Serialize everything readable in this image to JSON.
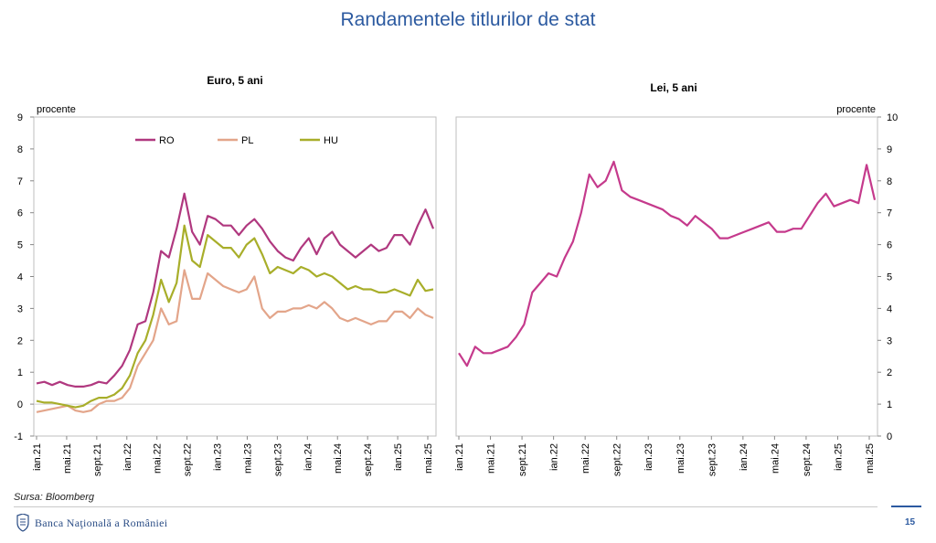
{
  "page": {
    "title": "Randamentele titlurilor de stat",
    "source": "Sursa: Bloomberg",
    "brand": "Banca Naţională a României",
    "page_number": "15"
  },
  "chart_data": [
    {
      "type": "line",
      "title": "Euro, 5 ani",
      "ylabel": "procente",
      "ylim": [
        -1,
        9
      ],
      "yticks": [
        "-1",
        "0",
        "1",
        "2",
        "3",
        "4",
        "5",
        "6",
        "7",
        "8",
        "9"
      ],
      "x_ticks": [
        "ian.21",
        "mai.21",
        "sept.21",
        "ian.22",
        "mai.22",
        "sept.22",
        "ian.23",
        "mai.23",
        "sept.23",
        "ian.24",
        "mai.24",
        "sept.24",
        "ian.25",
        "mai.25"
      ],
      "grid": false,
      "legend": "top-left",
      "series": [
        {
          "name": "RO",
          "color": "#b0387f",
          "x": [
            0,
            1,
            2,
            3,
            4,
            5,
            6,
            7,
            8,
            9,
            10,
            11,
            12,
            13,
            14,
            15,
            16,
            17,
            18,
            19,
            20,
            21,
            22,
            23,
            24,
            25,
            26,
            27,
            28,
            29,
            30,
            31,
            32,
            33,
            34,
            35,
            36,
            37,
            38,
            39,
            40,
            41,
            42,
            43,
            44,
            45,
            46,
            47,
            48,
            49,
            50,
            51
          ],
          "y": [
            0.65,
            0.7,
            0.6,
            0.7,
            0.6,
            0.55,
            0.55,
            0.6,
            0.7,
            0.65,
            0.9,
            1.2,
            1.7,
            2.5,
            2.6,
            3.5,
            4.8,
            4.6,
            5.5,
            6.6,
            5.4,
            5.0,
            5.9,
            5.8,
            5.6,
            5.6,
            5.3,
            5.6,
            5.8,
            5.5,
            5.1,
            4.8,
            4.6,
            4.5,
            4.9,
            5.2,
            4.7,
            5.2,
            5.4,
            5.0,
            4.8,
            4.6,
            4.8,
            5.0,
            4.8,
            4.9,
            5.3,
            5.3,
            5.0,
            5.6,
            6.1,
            5.5
          ]
        },
        {
          "name": "PL",
          "color": "#e3a58a",
          "x": [
            0,
            1,
            2,
            3,
            4,
            5,
            6,
            7,
            8,
            9,
            10,
            11,
            12,
            13,
            14,
            15,
            16,
            17,
            18,
            19,
            20,
            21,
            22,
            23,
            24,
            25,
            26,
            27,
            28,
            29,
            30,
            31,
            32,
            33,
            34,
            35,
            36,
            37,
            38,
            39,
            40,
            41,
            42,
            43,
            44,
            45,
            46,
            47,
            48,
            49,
            50,
            51
          ],
          "y": [
            -0.25,
            -0.2,
            -0.15,
            -0.1,
            -0.05,
            -0.2,
            -0.25,
            -0.2,
            0.0,
            0.1,
            0.1,
            0.2,
            0.5,
            1.2,
            1.6,
            2.0,
            3.0,
            2.5,
            2.6,
            4.2,
            3.3,
            3.3,
            4.1,
            3.9,
            3.7,
            3.6,
            3.5,
            3.6,
            4.0,
            3.0,
            2.7,
            2.9,
            2.9,
            3.0,
            3.0,
            3.1,
            3.0,
            3.2,
            3.0,
            2.7,
            2.6,
            2.7,
            2.6,
            2.5,
            2.6,
            2.6,
            2.9,
            2.9,
            2.7,
            3.0,
            2.8,
            2.7
          ]
        },
        {
          "name": "HU",
          "color": "#a8ae2a",
          "x": [
            0,
            1,
            2,
            3,
            4,
            5,
            6,
            7,
            8,
            9,
            10,
            11,
            12,
            13,
            14,
            15,
            16,
            17,
            18,
            19,
            20,
            21,
            22,
            23,
            24,
            25,
            26,
            27,
            28,
            29,
            30,
            31,
            32,
            33,
            34,
            35,
            36,
            37,
            38,
            39,
            40,
            41,
            42,
            43,
            44,
            45,
            46,
            47,
            48,
            49,
            50,
            51
          ],
          "y": [
            0.1,
            0.05,
            0.05,
            0.0,
            -0.05,
            -0.1,
            -0.05,
            0.1,
            0.2,
            0.2,
            0.3,
            0.5,
            0.9,
            1.6,
            2.0,
            2.8,
            3.9,
            3.2,
            3.8,
            5.6,
            4.5,
            4.3,
            5.3,
            5.1,
            4.9,
            4.9,
            4.6,
            5.0,
            5.2,
            4.7,
            4.1,
            4.3,
            4.2,
            4.1,
            4.3,
            4.2,
            4.0,
            4.1,
            4.0,
            3.8,
            3.6,
            3.7,
            3.6,
            3.6,
            3.5,
            3.5,
            3.6,
            3.5,
            3.4,
            3.9,
            3.55,
            3.6
          ]
        }
      ]
    },
    {
      "type": "line",
      "title": "Lei, 5 ani",
      "ylabel": "procente",
      "ylim": [
        0,
        10
      ],
      "yticks": [
        "0",
        "1",
        "2",
        "3",
        "4",
        "5",
        "6",
        "7",
        "8",
        "9",
        "10"
      ],
      "x_ticks": [
        "ian.21",
        "mai.21",
        "sept.21",
        "ian.22",
        "mai.22",
        "sept.22",
        "ian.23",
        "mai.23",
        "sept.23",
        "ian.24",
        "mai.24",
        "sept.24",
        "ian.25",
        "mai.25"
      ],
      "grid": false,
      "series": [
        {
          "name": "",
          "color": "#c53a8c",
          "x": [
            0,
            1,
            2,
            3,
            4,
            5,
            6,
            7,
            8,
            9,
            10,
            11,
            12,
            13,
            14,
            15,
            16,
            17,
            18,
            19,
            20,
            21,
            22,
            23,
            24,
            25,
            26,
            27,
            28,
            29,
            30,
            31,
            32,
            33,
            34,
            35,
            36,
            37,
            38,
            39,
            40,
            41,
            42,
            43,
            44,
            45,
            46,
            47,
            48,
            49,
            50,
            51
          ],
          "y": [
            2.6,
            2.2,
            2.8,
            2.6,
            2.6,
            2.7,
            2.8,
            3.1,
            3.5,
            4.5,
            4.8,
            5.1,
            5.0,
            5.6,
            6.1,
            7.0,
            8.2,
            7.8,
            8.0,
            8.6,
            7.7,
            7.5,
            7.4,
            7.3,
            7.2,
            7.1,
            6.9,
            6.8,
            6.6,
            6.9,
            6.7,
            6.5,
            6.2,
            6.2,
            6.3,
            6.4,
            6.5,
            6.6,
            6.7,
            6.4,
            6.4,
            6.5,
            6.5,
            6.9,
            7.3,
            7.6,
            7.2,
            7.3,
            7.4,
            7.3,
            8.5,
            7.4
          ]
        }
      ]
    }
  ]
}
